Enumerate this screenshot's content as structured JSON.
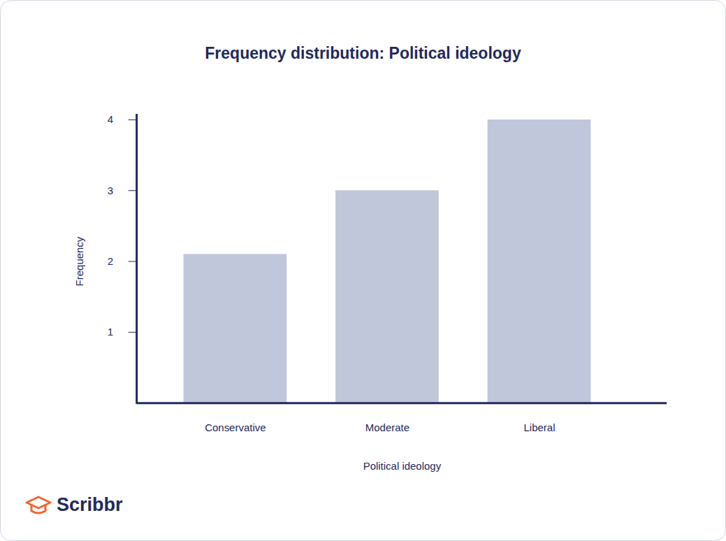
{
  "chart_data": {
    "type": "bar",
    "title": "Frequency distribution: Political ideology",
    "x_label": "Political ideology",
    "y_label": "Frequency",
    "categories": [
      "Conservative",
      "Moderate",
      "Liberal"
    ],
    "values": [
      2.1,
      3,
      4
    ],
    "color": "#c1c7da",
    "ylim": [
      0,
      4
    ],
    "yticks": [
      1,
      2,
      3,
      4
    ],
    "grid": false,
    "caption": "Scribbr"
  }
}
